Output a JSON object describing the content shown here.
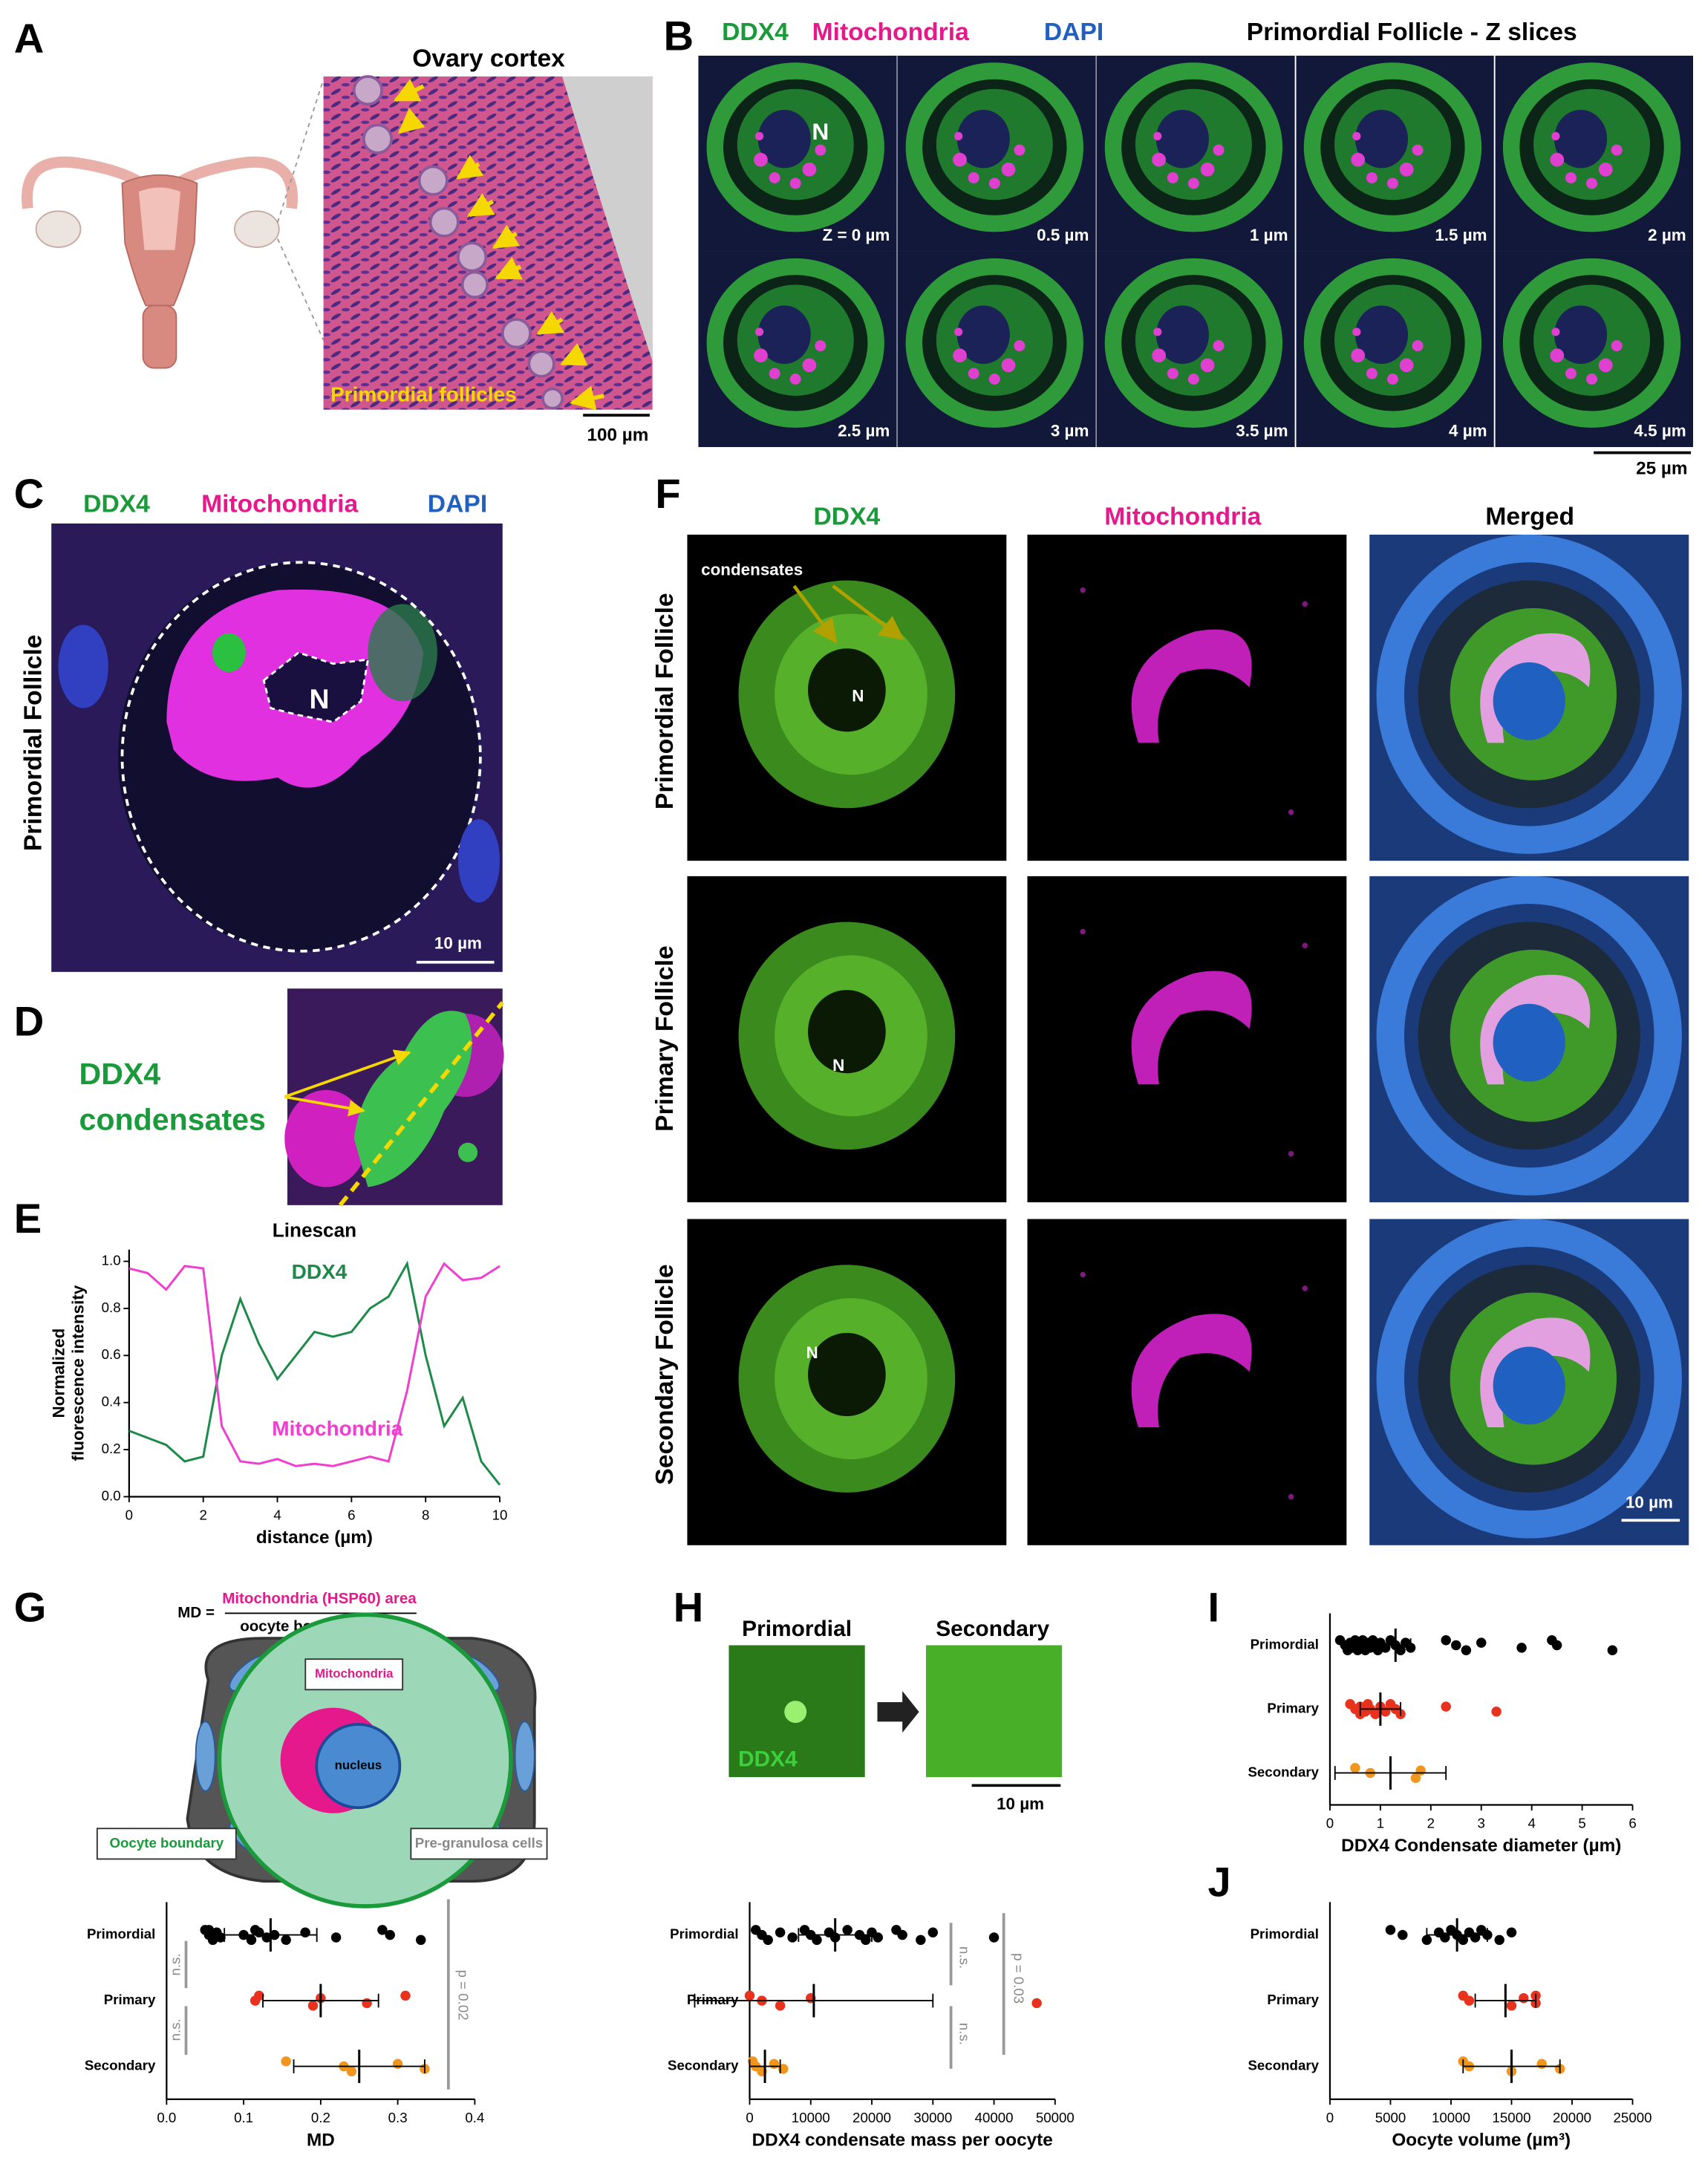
{
  "panel_labels": [
    "A",
    "B",
    "C",
    "D",
    "E",
    "F",
    "G",
    "H",
    "I",
    "J"
  ],
  "panel_a": {
    "title": "Ovary cortex",
    "annotation": "Primordial follicles",
    "scale_bar": "100 µm"
  },
  "panel_b": {
    "stains": [
      "DDX4",
      "Mitochondria",
      "DAPI"
    ],
    "title": "Primordial Follicle - Z slices",
    "z_labels": [
      "Z = 0 µm",
      "0.5 µm",
      "1 µm",
      "1.5 µm",
      "2 µm",
      "2.5 µm",
      "3 µm",
      "3.5 µm",
      "4 µm",
      "4.5 µm"
    ],
    "scale_bar": "25 µm",
    "nucleus": "N"
  },
  "panel_c": {
    "stains": [
      "DDX4",
      "Mitochondria",
      "DAPI"
    ],
    "row_label": "Primordial Follicle",
    "nucleus": "N",
    "scale_bar": "10 µm"
  },
  "panel_d": {
    "label": [
      "DDX4",
      "condensates"
    ]
  },
  "panel_f": {
    "columns": [
      "DDX4",
      "Mitochondria",
      "Merged"
    ],
    "rows": [
      "Primordial Follicle",
      "Primary Follicle",
      "Secondary Follicle"
    ],
    "annotation": "condensates",
    "nucleus": "N",
    "scale_bar": "10 µm"
  },
  "panel_g": {
    "formula_lhs": "MD =",
    "numerator": "Mitochondria (HSP60) area",
    "denominator": "oocyte boundary area",
    "labels": {
      "mitochondria": "Mitochondria",
      "nucleus": "nucleus",
      "boundary": "Oocyte boundary",
      "granulosa": "Pre-granulosa cells"
    }
  },
  "panel_h": {
    "columns": [
      "Primordial",
      "Secondary"
    ],
    "stain": "DDX4",
    "scale_bar": "10 µm"
  },
  "chart_data": [
    {
      "type": "line",
      "title": "Linescan",
      "xlabel": "distance (µm)",
      "ylabel": [
        "Normalized",
        "fluorescence intensity"
      ],
      "x": [
        0,
        0.5,
        1,
        1.5,
        2,
        2.5,
        3,
        3.5,
        4,
        4.5,
        5,
        5.5,
        6,
        6.5,
        7,
        7.5,
        8,
        8.5,
        9,
        9.5,
        10
      ],
      "series": [
        {
          "name": "DDX4",
          "color": "#1e8a4a",
          "values": [
            0.28,
            0.25,
            0.22,
            0.15,
            0.17,
            0.6,
            0.84,
            0.65,
            0.5,
            0.6,
            0.7,
            0.68,
            0.7,
            0.8,
            0.85,
            0.99,
            0.6,
            0.3,
            0.42,
            0.15,
            0.05
          ]
        },
        {
          "name": "Mitochondria",
          "color": "#ee3fcf",
          "values": [
            0.97,
            0.95,
            0.88,
            0.98,
            0.97,
            0.3,
            0.15,
            0.14,
            0.16,
            0.13,
            0.14,
            0.13,
            0.15,
            0.17,
            0.15,
            0.45,
            0.85,
            0.99,
            0.92,
            0.93,
            0.98
          ]
        }
      ],
      "xlim": [
        0,
        10
      ],
      "xticks": [
        0,
        2,
        4,
        6,
        8,
        10
      ],
      "ylim": [
        0,
        1.05
      ],
      "yticks": [
        {
          "value": 0,
          "label": "0.0"
        },
        0.2,
        0.4,
        0.6,
        0.8,
        {
          "value": 1,
          "label": "1.0"
        }
      ]
    },
    {
      "type": "strip",
      "xlabel": "MD",
      "xlim": [
        0,
        0.4
      ],
      "xticks": [
        {
          "value": 0,
          "label": "0.0"
        },
        0.1,
        0.2,
        0.3,
        0.4
      ],
      "series": [
        {
          "name": "Primordial",
          "color": "#000000",
          "values": [
            0.05,
            0.055,
            0.06,
            0.065,
            0.07,
            0.055,
            0.1,
            0.11,
            0.12,
            0.13,
            0.115,
            0.14,
            0.155,
            0.18,
            0.22,
            0.28,
            0.29,
            0.33
          ],
          "mean": 0.135,
          "sd": 0.06
        },
        {
          "name": "Primary",
          "color": "#e8321e",
          "values": [
            0.12,
            0.115,
            0.19,
            0.2,
            0.26,
            0.31
          ],
          "mean": 0.2,
          "sd": 0.075
        },
        {
          "name": "Secondary",
          "color": "#f0961e",
          "values": [
            0.155,
            0.23,
            0.24,
            0.3,
            0.335
          ],
          "mean": 0.25,
          "sd": 0.085
        }
      ],
      "annotations": [
        "n.s.",
        "n.s.",
        "p = 0.02"
      ]
    },
    {
      "type": "strip",
      "xlabel": "DDX4 condensate mass per oocyte",
      "xlim": [
        0,
        50000
      ],
      "xticks": [
        0,
        10000,
        20000,
        30000,
        40000,
        50000
      ],
      "series": [
        {
          "name": "Primordial",
          "color": "#000000",
          "values": [
            1000,
            2000,
            3000,
            5000,
            7000,
            9000,
            10000,
            11000,
            13000,
            14000,
            16000,
            18000,
            19000,
            20000,
            21000,
            24000,
            25000,
            28000,
            30000,
            40000
          ],
          "mean": 14000,
          "sd": 6000
        },
        {
          "name": "Primary",
          "color": "#e8321e",
          "values": [
            0,
            2000,
            5000,
            10000,
            47000
          ],
          "mean": 10500,
          "sd": 19500
        },
        {
          "name": "Secondary",
          "color": "#f0961e",
          "values": [
            500,
            1000,
            2000,
            4000,
            5500
          ],
          "mean": 2500,
          "sd": 2500
        }
      ],
      "annotations": [
        "n.s.",
        "n.s.",
        "p = 0.03"
      ]
    },
    {
      "type": "strip",
      "xlabel": "DDX4 Condensate diameter (µm)",
      "xlim": [
        0,
        6
      ],
      "xticks": [
        0,
        1,
        2,
        3,
        4,
        5,
        6
      ],
      "series": [
        {
          "name": "Primordial",
          "color": "#000000",
          "values": [
            0.2,
            0.3,
            0.35,
            0.4,
            0.45,
            0.5,
            0.5,
            0.55,
            0.6,
            0.6,
            0.65,
            0.7,
            0.7,
            0.75,
            0.8,
            0.85,
            0.9,
            0.95,
            1.0,
            1.1,
            1.2,
            1.3,
            1.4,
            1.5,
            1.6,
            2.3,
            2.5,
            2.7,
            3.0,
            3.8,
            4.4,
            4.5,
            5.6
          ],
          "mean": 1.3,
          "sd": 0.3
        },
        {
          "name": "Primary",
          "color": "#e8321e",
          "values": [
            0.4,
            0.5,
            0.6,
            0.6,
            0.7,
            0.75,
            0.8,
            0.9,
            1.0,
            1.1,
            1.2,
            1.3,
            1.4,
            2.3,
            3.3
          ],
          "mean": 1.0,
          "sd": 0.4
        },
        {
          "name": "Secondary",
          "color": "#f0961e",
          "values": [
            0.5,
            0.8,
            1.7,
            1.8
          ],
          "mean": 1.2,
          "sd": 1.1
        }
      ]
    },
    {
      "type": "strip",
      "xlabel": "Oocyte volume (µm³)",
      "xlim": [
        0,
        25000
      ],
      "xticks": [
        0,
        5000,
        10000,
        15000,
        20000,
        25000
      ],
      "series": [
        {
          "name": "Primordial",
          "color": "#000000",
          "values": [
            5000,
            6000,
            8000,
            9000,
            9500,
            10000,
            10500,
            11000,
            11500,
            12000,
            12500,
            13000,
            14000,
            15000
          ],
          "mean": 10500,
          "sd": 2500
        },
        {
          "name": "Primary",
          "color": "#e8321e",
          "values": [
            11000,
            11500,
            15000,
            16000,
            17000,
            17000
          ],
          "mean": 14500,
          "sd": 2500
        },
        {
          "name": "Secondary",
          "color": "#f0961e",
          "values": [
            11000,
            11500,
            15000,
            17500,
            19000
          ],
          "mean": 15000,
          "sd": 4000
        }
      ]
    }
  ]
}
